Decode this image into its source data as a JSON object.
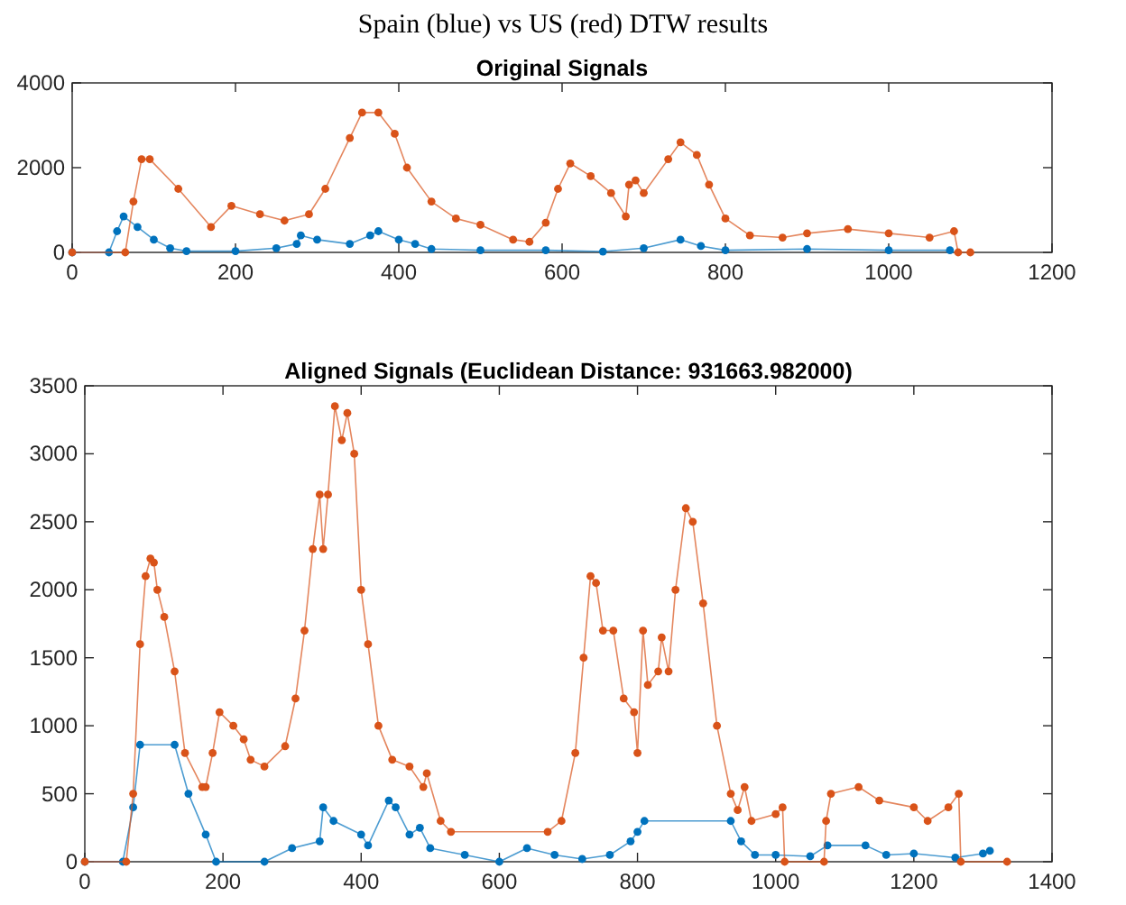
{
  "chart_data": [
    {
      "type": "line",
      "title": "Spain (blue) vs US (red) DTW results",
      "subtitle": "Original Signals",
      "xlim": [
        0,
        1200
      ],
      "xticks": [
        0,
        200,
        400,
        600,
        800,
        1000,
        1200
      ],
      "ylim": [
        0,
        4000
      ],
      "yticks": [
        0,
        2000,
        4000
      ],
      "grid": false,
      "marker": "circle",
      "line_style": "solid",
      "series": [
        {
          "color": "#0072bd",
          "x": [
            0,
            45,
            55,
            63,
            80,
            100,
            120,
            140,
            200,
            250,
            275,
            280,
            300,
            340,
            365,
            375,
            400,
            420,
            440,
            500,
            580,
            650,
            700,
            745,
            770,
            800,
            900,
            1000,
            1075
          ],
          "values": [
            0,
            0,
            500,
            850,
            600,
            300,
            100,
            30,
            30,
            100,
            200,
            400,
            300,
            200,
            400,
            500,
            300,
            200,
            80,
            50,
            50,
            20,
            100,
            300,
            150,
            50,
            80,
            50,
            50
          ]
        },
        {
          "color": "#d95319",
          "x": [
            0,
            65,
            75,
            85,
            95,
            130,
            170,
            195,
            230,
            260,
            290,
            310,
            340,
            355,
            375,
            395,
            410,
            440,
            470,
            500,
            540,
            560,
            580,
            595,
            610,
            635,
            660,
            678,
            682,
            690,
            700,
            730,
            745,
            765,
            780,
            800,
            830,
            870,
            900,
            950,
            1000,
            1050,
            1080,
            1085,
            1100
          ],
          "values": [
            0,
            0,
            1200,
            2200,
            2200,
            1500,
            600,
            1100,
            900,
            750,
            900,
            1500,
            2700,
            3300,
            3300,
            2800,
            2000,
            1200,
            800,
            650,
            300,
            250,
            700,
            1500,
            2100,
            1800,
            1400,
            850,
            1600,
            1700,
            1400,
            2200,
            2600,
            2300,
            1600,
            800,
            400,
            350,
            450,
            550,
            450,
            350,
            500,
            0,
            0
          ]
        }
      ]
    },
    {
      "type": "line",
      "subtitle": "Aligned Signals (Euclidean Distance: 931663.982000)",
      "xlim": [
        0,
        1400
      ],
      "xticks": [
        0,
        200,
        400,
        600,
        800,
        1000,
        1200,
        1400
      ],
      "ylim": [
        0,
        3500
      ],
      "yticks": [
        0,
        500,
        1000,
        1500,
        2000,
        2500,
        3000,
        3500
      ],
      "grid": false,
      "marker": "circle",
      "line_style": "solid",
      "series": [
        {
          "color": "#0072bd",
          "x": [
            0,
            55,
            70,
            80,
            130,
            150,
            175,
            190,
            260,
            300,
            340,
            345,
            360,
            400,
            410,
            440,
            450,
            470,
            485,
            500,
            550,
            600,
            640,
            680,
            720,
            760,
            790,
            800,
            810,
            935,
            950,
            970,
            1000,
            1050,
            1075,
            1130,
            1160,
            1200,
            1260,
            1300,
            1310
          ],
          "values": [
            0,
            0,
            400,
            860,
            860,
            500,
            200,
            0,
            0,
            100,
            150,
            400,
            300,
            200,
            120,
            450,
            400,
            200,
            250,
            100,
            50,
            0,
            100,
            50,
            20,
            50,
            150,
            220,
            300,
            300,
            150,
            50,
            50,
            40,
            120,
            120,
            50,
            60,
            30,
            60,
            80
          ]
        },
        {
          "color": "#d95319",
          "x": [
            0,
            60,
            70,
            80,
            88,
            95,
            100,
            105,
            115,
            130,
            145,
            170,
            175,
            185,
            195,
            215,
            230,
            240,
            260,
            290,
            305,
            318,
            330,
            340,
            345,
            352,
            362,
            372,
            380,
            390,
            400,
            410,
            425,
            445,
            470,
            490,
            495,
            515,
            530,
            670,
            690,
            710,
            722,
            732,
            740,
            750,
            765,
            780,
            795,
            800,
            808,
            815,
            830,
            835,
            845,
            855,
            870,
            880,
            895,
            915,
            935,
            945,
            955,
            965,
            1000,
            1010,
            1013,
            1070,
            1073,
            1080,
            1120,
            1150,
            1200,
            1220,
            1250,
            1265,
            1268,
            1335
          ],
          "values": [
            0,
            0,
            500,
            1600,
            2100,
            2230,
            2200,
            2000,
            1800,
            1400,
            800,
            550,
            550,
            800,
            1100,
            1000,
            900,
            750,
            700,
            850,
            1200,
            1700,
            2300,
            2700,
            2300,
            2700,
            3350,
            3100,
            3300,
            3000,
            2000,
            1600,
            1000,
            750,
            700,
            550,
            650,
            300,
            220,
            220,
            300,
            800,
            1500,
            2100,
            2050,
            1700,
            1700,
            1200,
            1100,
            800,
            1700,
            1300,
            1400,
            1650,
            1400,
            2000,
            2600,
            2500,
            1900,
            1000,
            500,
            380,
            550,
            300,
            350,
            400,
            0,
            0,
            300,
            500,
            550,
            450,
            400,
            300,
            400,
            500,
            0,
            0
          ]
        }
      ]
    }
  ]
}
